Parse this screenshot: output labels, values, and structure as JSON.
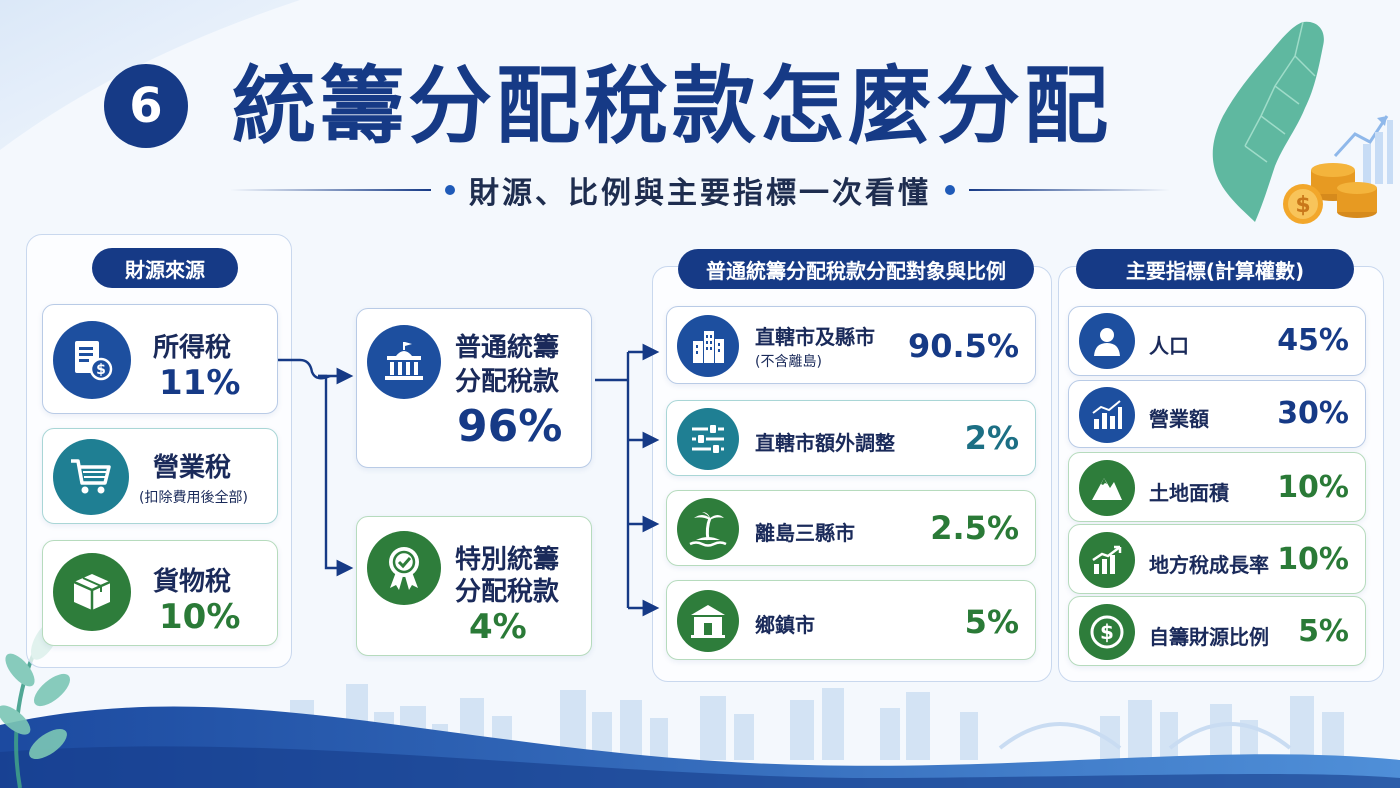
{
  "header": {
    "badge_number": "6",
    "title": "統籌分配稅款怎麼分配",
    "subtitle": "財源、比例與主要指標一次看懂"
  },
  "sources": {
    "title": "財源來源",
    "items": [
      {
        "name": "所得稅",
        "value": "11%",
        "note": "",
        "icon": "tax-document-icon"
      },
      {
        "name": "營業稅",
        "value": "",
        "note": "(扣除費用後全部)",
        "icon": "shopping-cart-icon"
      },
      {
        "name": "貨物稅",
        "value": "10%",
        "note": "",
        "icon": "box-icon"
      }
    ]
  },
  "funds": {
    "general": {
      "line1": "普通統籌",
      "line2": "分配稅款",
      "value": "96%",
      "icon": "government-building-icon"
    },
    "special": {
      "line1": "特別統籌",
      "line2": "分配稅款",
      "value": "4%",
      "icon": "award-badge-icon"
    }
  },
  "allocation": {
    "title": "普通統籌分配稅款分配對象與比例",
    "items": [
      {
        "name": "直轄市及縣市",
        "note": "(不含離島)",
        "value": "90.5%",
        "icon": "city-buildings-icon"
      },
      {
        "name": "直轄市額外調整",
        "note": "",
        "value": "2%",
        "icon": "sliders-icon"
      },
      {
        "name": "離島三縣市",
        "note": "",
        "value": "2.5%",
        "icon": "island-palm-icon"
      },
      {
        "name": "鄉鎮市",
        "note": "",
        "value": "5%",
        "icon": "town-hall-icon"
      }
    ]
  },
  "indicators": {
    "title": "主要指標(計算權數)",
    "items": [
      {
        "name": "人口",
        "value": "45%",
        "icon": "person-icon"
      },
      {
        "name": "營業額",
        "value": "30%",
        "icon": "bar-chart-icon"
      },
      {
        "name": "土地面積",
        "value": "10%",
        "icon": "mountain-icon"
      },
      {
        "name": "地方稅成長率",
        "value": "10%",
        "icon": "growth-chart-icon"
      },
      {
        "name": "自籌財源比例",
        "value": "5%",
        "icon": "dollar-coin-icon"
      }
    ]
  },
  "colors": {
    "navy": "#163a86",
    "blue": "#1d4f9f",
    "teal": "#1f7f93",
    "green": "#2e7d3b"
  }
}
